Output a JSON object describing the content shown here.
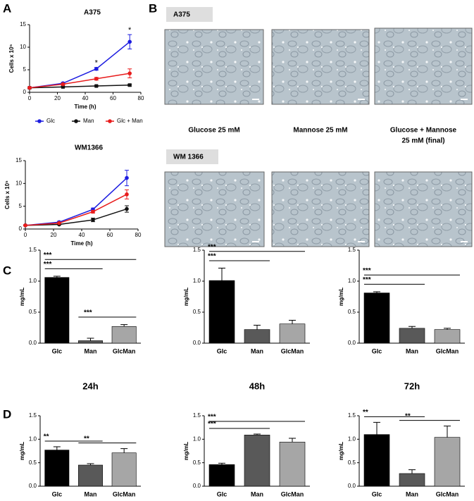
{
  "panel_labels": [
    "A",
    "B",
    "C",
    "D"
  ],
  "image_panel": {
    "cell_lines": [
      "A375",
      "WM 1366"
    ],
    "conditions": [
      [
        "Glucose 25 mM"
      ],
      [
        "Mannose 25 mM"
      ],
      [
        "Glucose + Mannose",
        "25 mM (final)"
      ]
    ]
  },
  "chart_data": [
    {
      "type": "line",
      "title": "A375",
      "x_label": "Time (h)",
      "y_label": "Cells x 10⁵",
      "xlim": [
        0,
        80
      ],
      "xticks": [
        0,
        20,
        40,
        60,
        80
      ],
      "ylim": [
        0,
        15
      ],
      "yticks": [
        0,
        5,
        10,
        15
      ],
      "x": [
        0,
        24,
        48,
        72
      ],
      "legend": "bottom",
      "series": [
        {
          "name": "Glc",
          "color": "#1c1ce0",
          "marker": "circle",
          "values": [
            1,
            2,
            5.2,
            11.2
          ],
          "errors": [
            0.1,
            0.2,
            0.3,
            1.6
          ]
        },
        {
          "name": "Man",
          "color": "#111111",
          "marker": "square",
          "values": [
            1,
            1.2,
            1.4,
            1.6
          ],
          "errors": [
            0.1,
            0.1,
            0.1,
            0.2
          ]
        },
        {
          "name": "Glc + Man",
          "color": "#e81c1c",
          "marker": "circle",
          "values": [
            1,
            1.8,
            3,
            4.2
          ],
          "errors": [
            0.1,
            0.2,
            0.3,
            1
          ]
        }
      ],
      "annotations": [
        {
          "text": "*",
          "x": 48
        },
        {
          "text": "*",
          "x": 72
        }
      ]
    },
    {
      "type": "line",
      "title": "WM1366",
      "x_label": "Time (h)",
      "y_label": "Cells x 10⁵",
      "xlim": [
        0,
        80
      ],
      "xticks": [
        0,
        20,
        40,
        60,
        80
      ],
      "ylim": [
        0,
        15
      ],
      "yticks": [
        0,
        5,
        10,
        15
      ],
      "x": [
        0,
        24,
        48,
        72
      ],
      "series": [
        {
          "name": "Glc",
          "color": "#1c1ce0",
          "marker": "circle",
          "values": [
            0.8,
            1.5,
            4.3,
            11.2
          ],
          "errors": [
            0.1,
            0.2,
            0.3,
            1.7
          ]
        },
        {
          "name": "Man",
          "color": "#111111",
          "marker": "circle",
          "values": [
            0.8,
            1,
            2,
            4.4
          ],
          "errors": [
            0.1,
            0.1,
            0.4,
            0.7
          ]
        },
        {
          "name": "Glc + Man",
          "color": "#e81c1c",
          "marker": "circle",
          "values": [
            0.8,
            1.3,
            3.8,
            7.6
          ],
          "errors": [
            0.1,
            0.1,
            0.3,
            1
          ]
        }
      ]
    },
    {
      "type": "bar",
      "y_label": "mg/mL",
      "categories": [
        "Glc",
        "Man",
        "GlcMan"
      ],
      "values": [
        1.06,
        0.04,
        0.27
      ],
      "errors": [
        0.02,
        0.04,
        0.03
      ],
      "colors": [
        "#000000",
        "#595959",
        "#a6a6a6"
      ],
      "ylim": [
        0,
        1.5
      ],
      "yticks": [
        {
          "value": 0,
          "label": "0.0"
        },
        0.5,
        {
          "value": 1,
          "label": "1.0"
        },
        1.5
      ],
      "significance": [
        {
          "text": "***",
          "from": 0,
          "to": 2
        },
        {
          "text": "***",
          "from": 0,
          "to": 1
        },
        {
          "text": "***",
          "from": 1,
          "to": 2
        }
      ]
    },
    {
      "type": "bar",
      "y_label": "mg/mL",
      "categories": [
        "Glc",
        "Man",
        "GlcMan"
      ],
      "values": [
        1.01,
        0.22,
        0.31
      ],
      "errors": [
        0.2,
        0.07,
        0.06
      ],
      "colors": [
        "#000000",
        "#595959",
        "#a6a6a6"
      ],
      "ylim": [
        0,
        1.5
      ],
      "yticks": [
        {
          "value": 0,
          "label": "0.0"
        },
        0.5,
        {
          "value": 1,
          "label": "1.0"
        },
        1.5
      ],
      "significance": [
        {
          "text": "***",
          "from": 0,
          "to": 2
        },
        {
          "text": "***",
          "from": 0,
          "to": 1
        }
      ]
    },
    {
      "type": "bar",
      "y_label": "mg/mL",
      "categories": [
        "Glc",
        "Man",
        "GlcMan"
      ],
      "values": [
        0.81,
        0.24,
        0.22
      ],
      "errors": [
        0.02,
        0.03,
        0.02
      ],
      "colors": [
        "#000000",
        "#595959",
        "#a6a6a6"
      ],
      "ylim": [
        0,
        1.5
      ],
      "yticks": [
        {
          "value": 0,
          "label": "0.0"
        },
        0.5,
        {
          "value": 1,
          "label": "1.0"
        },
        1.5
      ],
      "significance": [
        {
          "text": "***",
          "from": 0,
          "to": 2
        },
        {
          "text": "***",
          "from": 0,
          "to": 1
        }
      ]
    },
    {
      "type": "bar",
      "title": "24h",
      "y_label": "mg/mL",
      "categories": [
        "Glc",
        "Man",
        "GlcMan"
      ],
      "values": [
        0.77,
        0.45,
        0.71
      ],
      "errors": [
        0.07,
        0.03,
        0.09
      ],
      "colors": [
        "#000000",
        "#595959",
        "#a6a6a6"
      ],
      "ylim": [
        0,
        1.5
      ],
      "yticks": [
        {
          "value": 0,
          "label": "0.0"
        },
        0.5,
        {
          "value": 1,
          "label": "1.0"
        },
        1.5
      ],
      "significance": [
        {
          "text": "**",
          "from": 0,
          "to": 1
        },
        {
          "text": "**",
          "from": 1,
          "to": 2
        }
      ]
    },
    {
      "type": "bar",
      "title": "48h",
      "y_label": "mg/mL",
      "categories": [
        "Glc",
        "Man",
        "GlcMan"
      ],
      "values": [
        0.46,
        1.09,
        0.94
      ],
      "errors": [
        0.03,
        0.02,
        0.08
      ],
      "colors": [
        "#000000",
        "#595959",
        "#a6a6a6"
      ],
      "ylim": [
        0,
        1.5
      ],
      "yticks": [
        {
          "value": 0,
          "label": "0.0"
        },
        0.5,
        {
          "value": 1,
          "label": "1.0"
        },
        1.5
      ],
      "significance": [
        {
          "text": "***",
          "from": 0,
          "to": 2
        },
        {
          "text": "***",
          "from": 0,
          "to": 1
        }
      ]
    },
    {
      "type": "bar",
      "title": "72h",
      "y_label": "mg/mL",
      "categories": [
        "Glc",
        "Man",
        "GlcMan"
      ],
      "values": [
        1.1,
        0.27,
        1.04
      ],
      "errors": [
        0.26,
        0.08,
        0.24
      ],
      "colors": [
        "#000000",
        "#595959",
        "#a6a6a6"
      ],
      "ylim": [
        0,
        1.5
      ],
      "yticks": [
        {
          "value": 0,
          "label": "0.0"
        },
        0.5,
        {
          "value": 1,
          "label": "1.0"
        },
        1.5
      ],
      "significance": [
        {
          "text": "**",
          "from": 0,
          "to": 1
        },
        {
          "text": "**",
          "from": 1,
          "to": 2
        }
      ]
    }
  ]
}
